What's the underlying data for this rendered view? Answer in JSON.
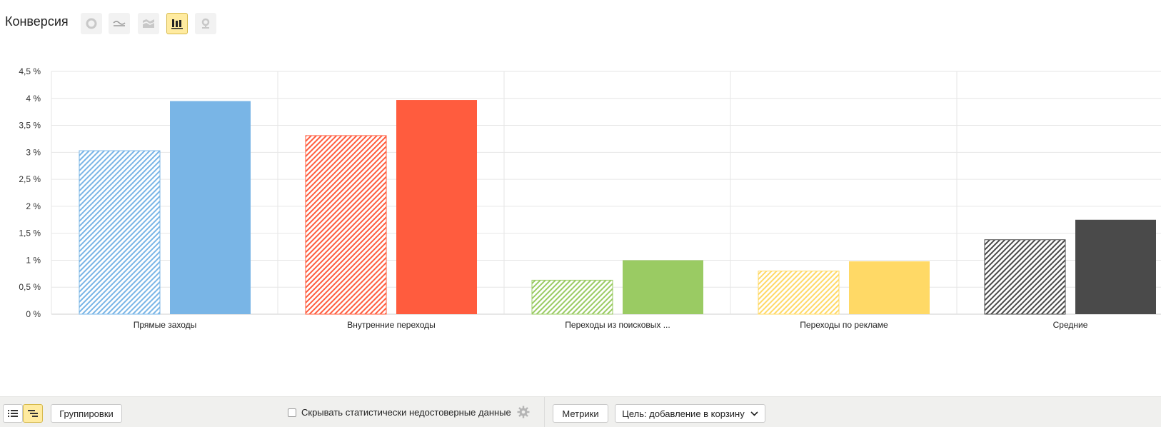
{
  "header": {
    "title": "Конверсия",
    "view_buttons": [
      {
        "icon": "pie-chart-icon",
        "active": false
      },
      {
        "icon": "line-chart-icon",
        "active": false
      },
      {
        "icon": "area-chart-icon",
        "active": false
      },
      {
        "icon": "bar-chart-icon",
        "active": true
      },
      {
        "icon": "map-pin-icon",
        "active": false
      }
    ]
  },
  "chart_data": {
    "type": "bar",
    "title": "",
    "xlabel": "",
    "ylabel": "",
    "ylim": [
      0,
      4.5
    ],
    "yticks": [
      "0 %",
      "0,5 %",
      "1 %",
      "1,5 %",
      "2 %",
      "2,5 %",
      "3 %",
      "3,5 %",
      "4 %",
      "4,5 %"
    ],
    "grid": true,
    "categories": [
      "Прямые заходы",
      "Внутренние переходы",
      "Переходы из поисковых ...",
      "Переходы по рекламе",
      "Средние"
    ],
    "category_colors": [
      "#79b5e6",
      "#ff5c3e",
      "#9acb63",
      "#ffd966",
      "#4a4a4a"
    ],
    "series": [
      {
        "style": "hatched",
        "values": [
          3.03,
          3.31,
          0.63,
          0.8,
          1.38
        ]
      },
      {
        "style": "solid",
        "values": [
          3.95,
          3.97,
          1.0,
          0.98,
          1.75
        ]
      }
    ]
  },
  "footer": {
    "groupings_label": "Группировки",
    "hide_unreliable_label": "Скрывать статистически недостоверные данные",
    "hide_unreliable_checked": false,
    "metrics_label": "Метрики",
    "goal_label": "Цель: добавление в корзину"
  }
}
